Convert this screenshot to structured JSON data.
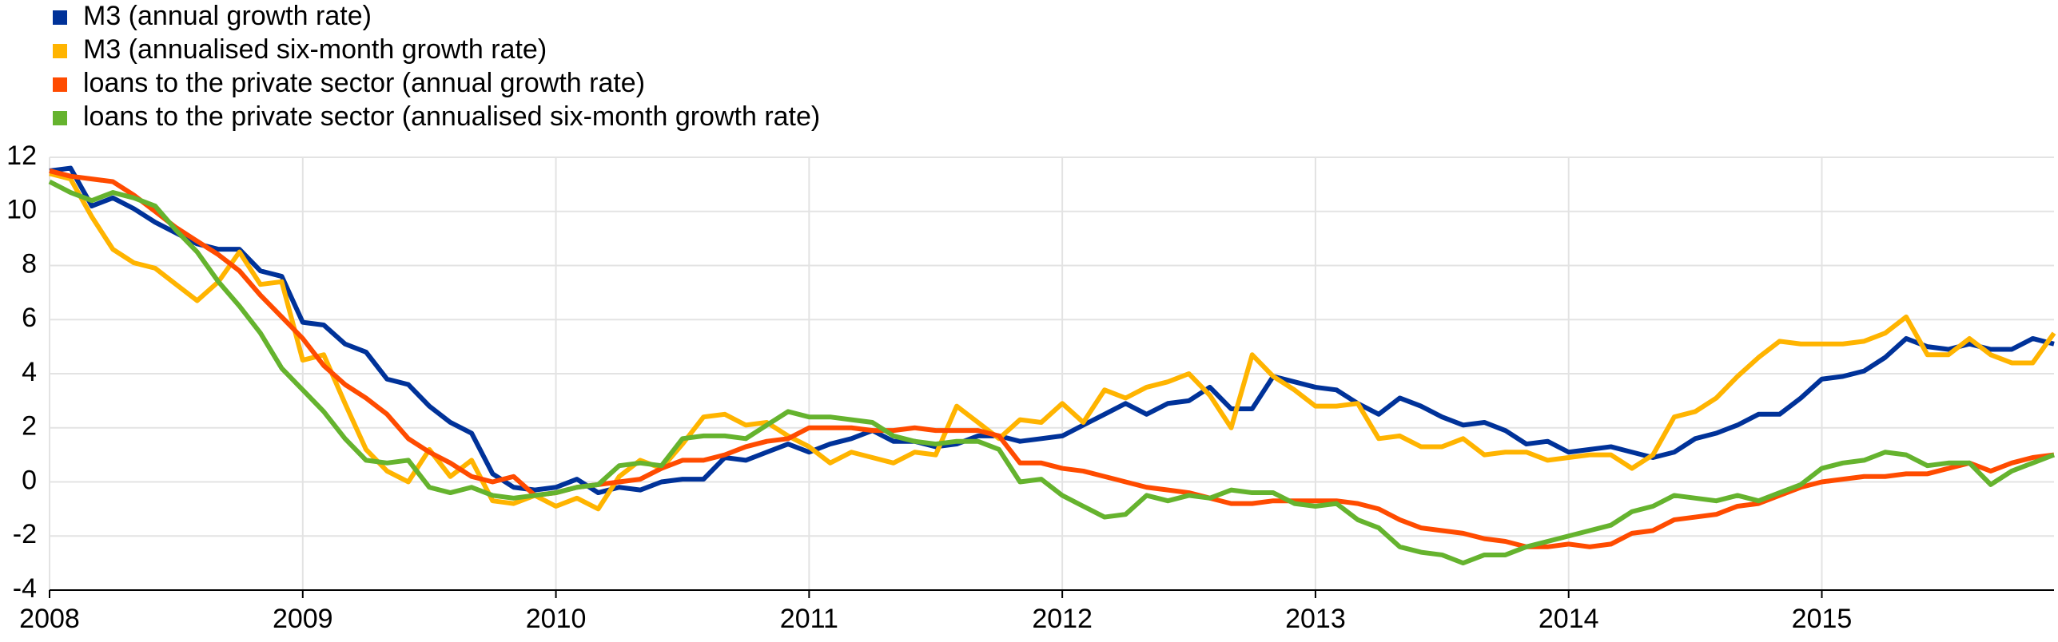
{
  "chart_data": {
    "type": "line",
    "x": [
      2008,
      2008.083,
      2008.167,
      2008.25,
      2008.333,
      2008.417,
      2008.5,
      2008.583,
      2008.667,
      2008.75,
      2008.833,
      2008.917,
      2009,
      2009.083,
      2009.167,
      2009.25,
      2009.333,
      2009.417,
      2009.5,
      2009.583,
      2009.667,
      2009.75,
      2009.833,
      2009.917,
      2010,
      2010.083,
      2010.167,
      2010.25,
      2010.333,
      2010.417,
      2010.5,
      2010.583,
      2010.667,
      2010.75,
      2010.833,
      2010.917,
      2011,
      2011.083,
      2011.167,
      2011.25,
      2011.333,
      2011.417,
      2011.5,
      2011.583,
      2011.667,
      2011.75,
      2011.833,
      2011.917,
      2012,
      2012.083,
      2012.167,
      2012.25,
      2012.333,
      2012.417,
      2012.5,
      2012.583,
      2012.667,
      2012.75,
      2012.833,
      2012.917,
      2013,
      2013.083,
      2013.167,
      2013.25,
      2013.333,
      2013.417,
      2013.5,
      2013.583,
      2013.667,
      2013.75,
      2013.833,
      2013.917,
      2014,
      2014.083,
      2014.167,
      2014.25,
      2014.333,
      2014.417,
      2014.5,
      2014.583,
      2014.667,
      2014.75,
      2014.833,
      2014.917,
      2015,
      2015.083,
      2015.167,
      2015.25,
      2015.333,
      2015.417,
      2015.5,
      2015.583,
      2015.667,
      2015.75,
      2015.833,
      2015.917
    ],
    "series": [
      {
        "name": "M3 (annual growth rate)",
        "color": "#003299",
        "values": [
          11.5,
          11.6,
          10.2,
          10.5,
          10.1,
          9.6,
          9.2,
          8.8,
          8.6,
          8.6,
          7.8,
          7.6,
          5.9,
          5.8,
          5.1,
          4.8,
          3.8,
          3.6,
          2.8,
          2.2,
          1.8,
          0.3,
          -0.2,
          -0.3,
          -0.2,
          0.1,
          -0.4,
          -0.2,
          -0.3,
          0.0,
          0.1,
          0.1,
          0.9,
          0.8,
          1.1,
          1.4,
          1.1,
          1.4,
          1.6,
          1.9,
          1.5,
          1.5,
          1.3,
          1.4,
          1.7,
          1.7,
          1.5,
          1.6,
          1.7,
          2.1,
          2.5,
          2.9,
          2.5,
          2.9,
          3.0,
          3.5,
          2.7,
          2.7,
          3.9,
          3.7,
          3.5,
          3.4,
          2.9,
          2.5,
          3.1,
          2.8,
          2.4,
          2.1,
          2.2,
          1.9,
          1.4,
          1.5,
          1.1,
          1.2,
          1.3,
          1.1,
          0.9,
          1.1,
          1.6,
          1.8,
          2.1,
          2.5,
          2.5,
          3.1,
          3.8,
          3.9,
          4.1,
          4.6,
          5.3,
          5.0,
          4.9,
          5.1,
          4.9,
          4.9,
          5.3,
          5.1
        ]
      },
      {
        "name": "M3 (annualised six-month growth rate)",
        "color": "#ffb400",
        "values": [
          11.4,
          11.2,
          9.8,
          8.6,
          8.1,
          7.9,
          7.3,
          6.7,
          7.4,
          8.5,
          7.3,
          7.4,
          4.5,
          4.7,
          2.9,
          1.2,
          0.4,
          0.0,
          1.2,
          0.2,
          0.8,
          -0.7,
          -0.8,
          -0.5,
          -0.9,
          -0.6,
          -1.0,
          0.2,
          0.8,
          0.5,
          1.4,
          2.4,
          2.5,
          2.1,
          2.2,
          1.7,
          1.3,
          0.7,
          1.1,
          0.9,
          0.7,
          1.1,
          1.0,
          2.8,
          2.2,
          1.6,
          2.3,
          2.2,
          2.9,
          2.2,
          3.4,
          3.1,
          3.5,
          3.7,
          4.0,
          3.2,
          2.0,
          4.7,
          3.9,
          3.4,
          2.8,
          2.8,
          2.9,
          1.6,
          1.7,
          1.3,
          1.3,
          1.6,
          1.0,
          1.1,
          1.1,
          0.8,
          0.9,
          1.0,
          1.0,
          0.5,
          1.0,
          2.4,
          2.6,
          3.1,
          3.9,
          4.6,
          5.2,
          5.1,
          5.1,
          5.1,
          5.2,
          5.5,
          6.1,
          4.7,
          4.7,
          5.3,
          4.7,
          4.4,
          4.4,
          5.5
        ]
      },
      {
        "name": "loans to the private sector (annual growth rate)",
        "color": "#ff4b00",
        "values": [
          11.5,
          11.3,
          11.2,
          11.1,
          10.6,
          10.0,
          9.4,
          8.9,
          8.4,
          7.8,
          6.9,
          6.1,
          5.3,
          4.3,
          3.6,
          3.1,
          2.5,
          1.6,
          1.1,
          0.7,
          0.2,
          0.0,
          0.2,
          -0.5,
          -0.4,
          -0.2,
          -0.1,
          0.0,
          0.1,
          0.5,
          0.8,
          0.8,
          1.0,
          1.3,
          1.5,
          1.6,
          2.0,
          2.0,
          2.0,
          1.9,
          1.9,
          2.0,
          1.9,
          1.9,
          1.9,
          1.7,
          0.7,
          0.7,
          0.5,
          0.4,
          0.2,
          0.0,
          -0.2,
          -0.3,
          -0.4,
          -0.6,
          -0.8,
          -0.8,
          -0.7,
          -0.7,
          -0.7,
          -0.7,
          -0.8,
          -1.0,
          -1.4,
          -1.7,
          -1.8,
          -1.9,
          -2.1,
          -2.2,
          -2.4,
          -2.4,
          -2.3,
          -2.4,
          -2.3,
          -1.9,
          -1.8,
          -1.4,
          -1.3,
          -1.2,
          -0.9,
          -0.8,
          -0.5,
          -0.2,
          0.0,
          0.1,
          0.2,
          0.2,
          0.3,
          0.3,
          0.5,
          0.7,
          0.4,
          0.7,
          0.9,
          1.0
        ]
      },
      {
        "name": "loans to the private sector (annualised six-month growth rate)",
        "color": "#65b32e",
        "values": [
          11.1,
          10.7,
          10.4,
          10.7,
          10.5,
          10.2,
          9.3,
          8.5,
          7.4,
          6.5,
          5.5,
          4.2,
          3.4,
          2.6,
          1.6,
          0.8,
          0.7,
          0.8,
          -0.2,
          -0.4,
          -0.2,
          -0.5,
          -0.6,
          -0.5,
          -0.4,
          -0.2,
          -0.1,
          0.6,
          0.7,
          0.6,
          1.6,
          1.7,
          1.7,
          1.6,
          2.1,
          2.6,
          2.4,
          2.4,
          2.3,
          2.2,
          1.7,
          1.5,
          1.4,
          1.5,
          1.5,
          1.2,
          0.0,
          0.1,
          -0.5,
          -0.9,
          -1.3,
          -1.2,
          -0.5,
          -0.7,
          -0.5,
          -0.6,
          -0.3,
          -0.4,
          -0.4,
          -0.8,
          -0.9,
          -0.8,
          -1.4,
          -1.7,
          -2.4,
          -2.6,
          -2.7,
          -3.0,
          -2.7,
          -2.7,
          -2.4,
          -2.2,
          -2.0,
          -1.8,
          -1.6,
          -1.1,
          -0.9,
          -0.5,
          -0.6,
          -0.7,
          -0.5,
          -0.7,
          -0.4,
          -0.1,
          0.5,
          0.7,
          0.8,
          1.1,
          1.0,
          0.6,
          0.7,
          0.7,
          -0.1,
          0.4,
          0.7,
          1.0
        ]
      }
    ],
    "xlim": [
      2008,
      2015.917
    ],
    "xticks": [
      2008,
      2009,
      2010,
      2011,
      2012,
      2013,
      2014,
      2015
    ],
    "ylim": [
      -4,
      12
    ],
    "yticks": [
      -4,
      -2,
      0,
      2,
      4,
      6,
      8,
      10,
      12
    ],
    "grid": true,
    "legend": "top-left"
  }
}
